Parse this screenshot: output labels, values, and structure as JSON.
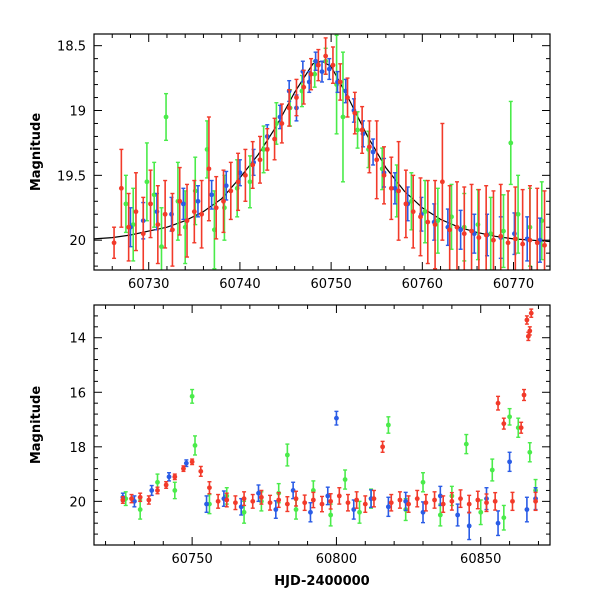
{
  "chart_data": [
    {
      "type": "scatter",
      "panel": "top",
      "title": "",
      "xlabel": "",
      "ylabel": "Magnitude",
      "xlim": [
        60724,
        60774
      ],
      "ylim": [
        20.23,
        18.41
      ],
      "y_inverted": true,
      "x_ticks": [
        60730,
        60740,
        60750,
        60760,
        60770
      ],
      "x_tick_labels": [
        "60730",
        "60740",
        "60750",
        "60760",
        "60770"
      ],
      "y_ticks": [
        18.5,
        19,
        19.5,
        20
      ],
      "y_tick_labels": [
        "18.5",
        "19",
        "19.5",
        "20"
      ],
      "grid": false,
      "legend": "none",
      "error_bars": true,
      "model_curve": {
        "description": "black line",
        "color": "#000000",
        "x": [
          60724,
          60726,
          60728,
          60730,
          60732,
          60734,
          60736,
          60738,
          60740,
          60742,
          60744,
          60746,
          60748,
          60749,
          60750,
          60752,
          60754,
          60756,
          60758,
          60760,
          60762,
          60764,
          60766,
          60768,
          60770,
          60772,
          60774
        ],
        "y": [
          19.99,
          19.98,
          19.96,
          19.93,
          19.9,
          19.85,
          19.78,
          19.68,
          19.52,
          19.34,
          19.12,
          18.86,
          18.64,
          18.62,
          18.66,
          18.92,
          19.2,
          19.44,
          19.62,
          19.75,
          19.84,
          19.9,
          19.94,
          19.97,
          19.99,
          20.0,
          20.01
        ]
      },
      "series": [
        {
          "color": "#4aeb4a",
          "x": [
            60727.5,
            60728.3,
            60729.8,
            60730.6,
            60731.4,
            60731.9,
            60733.2,
            60734.0,
            60735.1,
            60736.4,
            60737.2,
            60738.3,
            60739.7,
            60741.1,
            60742.6,
            60744.0,
            60745.5,
            60746.8,
            60748.2,
            60749.4,
            60750.6,
            60751.3,
            60752.9,
            60754.1,
            60755.6,
            60757.2,
            60758.8,
            60760.3,
            60761.7,
            60763.2,
            60764.6,
            60766.1,
            60767.5,
            60768.9,
            60769.7,
            60770.5,
            60771.8,
            60773.1
          ],
          "y": [
            19.72,
            19.88,
            19.55,
            19.65,
            20.05,
            19.05,
            19.7,
            19.9,
            19.62,
            19.3,
            19.92,
            19.75,
            19.6,
            19.55,
            19.3,
            19.1,
            18.98,
            18.85,
            18.72,
            18.62,
            18.8,
            19.05,
            19.15,
            19.3,
            19.45,
            19.62,
            19.7,
            19.78,
            19.85,
            19.82,
            19.9,
            19.88,
            19.95,
            19.93,
            19.25,
            19.8,
            19.9,
            19.85
          ],
          "err": [
            0.22,
            0.28,
            0.3,
            0.25,
            0.3,
            0.18,
            0.3,
            0.28,
            0.26,
            0.22,
            0.3,
            0.25,
            0.22,
            0.2,
            0.18,
            0.16,
            0.14,
            0.12,
            0.1,
            0.1,
            0.38,
            0.5,
            0.14,
            0.14,
            0.16,
            0.2,
            0.22,
            0.24,
            0.25,
            0.25,
            0.26,
            0.27,
            0.28,
            0.28,
            0.32,
            0.3,
            0.3,
            0.3
          ]
        },
        {
          "color": "#2a5ce6",
          "x": [
            60728.0,
            60729.4,
            60730.9,
            60732.5,
            60733.8,
            60735.4,
            60736.9,
            60738.5,
            60740.0,
            60741.5,
            60743.0,
            60744.4,
            60745.4,
            60746.2,
            60746.9,
            60747.6,
            60748.3,
            60749.0,
            60749.8,
            60750.7,
            60751.6,
            60752.5,
            60753.5,
            60754.6,
            60755.8,
            60757.0,
            60758.4,
            60759.9,
            60761.3,
            60762.8,
            60764.2,
            60765.7,
            60767.1,
            60768.6,
            60770.1,
            60771.5,
            60772.9
          ],
          "y": [
            19.9,
            19.85,
            19.78,
            19.8,
            19.72,
            19.7,
            19.65,
            19.58,
            19.48,
            19.4,
            19.2,
            19.05,
            18.85,
            18.98,
            18.7,
            18.78,
            18.62,
            18.7,
            18.68,
            18.78,
            18.85,
            19.0,
            19.18,
            19.32,
            19.48,
            19.6,
            19.72,
            19.8,
            19.86,
            19.9,
            19.92,
            19.95,
            19.96,
            19.98,
            19.95,
            19.99,
            20.0
          ],
          "err": [
            0.15,
            0.14,
            0.14,
            0.13,
            0.12,
            0.12,
            0.11,
            0.11,
            0.1,
            0.1,
            0.09,
            0.09,
            0.08,
            0.1,
            0.08,
            0.08,
            0.07,
            0.08,
            0.08,
            0.08,
            0.09,
            0.09,
            0.1,
            0.1,
            0.11,
            0.12,
            0.13,
            0.13,
            0.14,
            0.14,
            0.15,
            0.15,
            0.16,
            0.16,
            0.16,
            0.17,
            0.17
          ]
        },
        {
          "color": "#f23a2a",
          "x": [
            60726.2,
            60727.0,
            60727.8,
            60728.6,
            60729.4,
            60730.2,
            60731.0,
            60731.8,
            60732.6,
            60733.4,
            60734.2,
            60735.0,
            60735.8,
            60736.6,
            60737.4,
            60738.2,
            60739.0,
            60739.8,
            60740.6,
            60741.4,
            60742.2,
            60743.0,
            60743.8,
            60744.6,
            60745.4,
            60746.2,
            60747.0,
            60747.8,
            60748.6,
            60749.4,
            60750.2,
            60751.0,
            60751.8,
            60752.6,
            60753.4,
            60754.2,
            60755.0,
            60755.8,
            60756.6,
            60757.4,
            60758.2,
            60759.0,
            60759.8,
            60760.6,
            60761.4,
            60762.2,
            60763.0,
            60763.8,
            60764.6,
            60765.4,
            60766.2,
            60767.0,
            60767.8,
            60768.6,
            60769.4,
            60770.2,
            60771.0,
            60771.8,
            60772.6,
            60773.4
          ],
          "y": [
            20.02,
            19.6,
            19.9,
            19.78,
            19.95,
            19.72,
            19.88,
            19.8,
            19.92,
            19.7,
            19.85,
            19.78,
            19.8,
            19.45,
            19.75,
            19.7,
            19.62,
            19.55,
            19.5,
            19.42,
            19.38,
            19.3,
            19.22,
            19.1,
            18.98,
            18.9,
            18.82,
            18.72,
            18.65,
            18.58,
            18.65,
            18.78,
            18.9,
            19.02,
            19.15,
            19.28,
            19.38,
            19.5,
            19.6,
            19.62,
            19.72,
            19.78,
            19.82,
            19.86,
            19.88,
            19.55,
            19.92,
            19.9,
            19.95,
            19.93,
            19.98,
            19.96,
            20.0,
            19.97,
            20.02,
            19.99,
            20.03,
            20.0,
            20.02,
            20.04
          ],
          "err": [
            0.12,
            0.3,
            0.26,
            0.3,
            0.28,
            0.26,
            0.3,
            0.26,
            0.28,
            0.26,
            0.28,
            0.24,
            0.26,
            0.4,
            0.24,
            0.24,
            0.22,
            0.22,
            0.2,
            0.18,
            0.18,
            0.16,
            0.16,
            0.15,
            0.14,
            0.14,
            0.13,
            0.12,
            0.12,
            0.14,
            0.14,
            0.14,
            0.15,
            0.16,
            0.18,
            0.2,
            0.3,
            0.22,
            0.24,
            0.38,
            0.26,
            0.28,
            0.3,
            0.32,
            0.34,
            0.45,
            0.34,
            0.35,
            0.36,
            0.36,
            0.37,
            0.38,
            0.38,
            0.4,
            0.4,
            0.4,
            0.42,
            0.42,
            0.42,
            0.42
          ]
        }
      ]
    },
    {
      "type": "scatter",
      "panel": "bottom",
      "title": "",
      "xlabel": "HJD-2400000",
      "ylabel": "Magnitude",
      "xlim": [
        60716,
        60874
      ],
      "ylim": [
        21.6,
        12.8
      ],
      "y_inverted": true,
      "x_ticks": [
        60750,
        60800,
        60850
      ],
      "x_tick_labels": [
        "60750",
        "60800",
        "60850"
      ],
      "y_ticks": [
        14,
        16,
        18,
        20
      ],
      "y_tick_labels": [
        "14",
        "16",
        "18",
        "20"
      ],
      "grid": false,
      "legend": "none",
      "error_bars": true,
      "series": [
        {
          "color": "#4aeb4a",
          "x": [
            60727,
            60732,
            60738,
            60744,
            60750,
            60751,
            60756,
            60762,
            60768,
            60774,
            60780,
            60783,
            60786,
            60792,
            60798,
            60803,
            60808,
            60812,
            60818,
            60824,
            60830,
            60836,
            60840,
            60845,
            60850,
            60854,
            60858,
            60860,
            60863,
            60867,
            60869
          ],
          "y": [
            19.9,
            20.3,
            19.3,
            19.6,
            16.15,
            17.95,
            20.1,
            19.8,
            20.4,
            20.0,
            19.7,
            18.3,
            20.3,
            19.6,
            20.5,
            19.2,
            20.4,
            19.9,
            17.2,
            20.3,
            19.3,
            20.5,
            19.8,
            17.9,
            20.4,
            18.85,
            20.6,
            16.9,
            17.3,
            18.2,
            19.6
          ],
          "err": [
            0.25,
            0.35,
            0.3,
            0.3,
            0.25,
            0.35,
            0.35,
            0.3,
            0.4,
            0.35,
            0.35,
            0.4,
            0.35,
            0.35,
            0.4,
            0.35,
            0.4,
            0.35,
            0.3,
            0.4,
            0.35,
            0.4,
            0.35,
            0.35,
            0.45,
            0.4,
            0.45,
            0.3,
            0.35,
            0.35,
            0.4
          ]
        },
        {
          "color": "#2a5ce6",
          "x": [
            60726,
            60730,
            60736,
            60742,
            60748,
            60755,
            60761,
            60767,
            60773,
            60779,
            60785,
            60791,
            60797,
            60800,
            60806,
            60812,
            60818,
            60824,
            60830,
            60836,
            60842,
            60846,
            60852,
            60856,
            60860,
            60866,
            60869
          ],
          "y": [
            19.85,
            20.0,
            19.6,
            19.1,
            18.6,
            20.1,
            19.9,
            20.2,
            19.7,
            20.3,
            19.6,
            20.4,
            19.8,
            16.95,
            20.3,
            19.9,
            20.2,
            20.0,
            20.4,
            19.8,
            20.5,
            20.9,
            19.9,
            20.8,
            18.55,
            20.3,
            19.9
          ],
          "err": [
            0.15,
            0.2,
            0.18,
            0.15,
            0.12,
            0.3,
            0.28,
            0.3,
            0.3,
            0.32,
            0.3,
            0.35,
            0.32,
            0.25,
            0.35,
            0.32,
            0.35,
            0.33,
            0.38,
            0.35,
            0.4,
            0.5,
            0.4,
            0.45,
            0.35,
            0.45,
            0.4
          ]
        },
        {
          "color": "#f23a2a",
          "x": [
            60726,
            60729,
            60732,
            60735,
            60738,
            60741,
            60744,
            60747,
            60750,
            60753,
            60756,
            60759,
            60762,
            60765,
            60768,
            60771,
            60774,
            60777,
            60780,
            60783,
            60786,
            60789,
            60792,
            60795,
            60798,
            60801,
            60804,
            60807,
            60810,
            60813,
            60816,
            60819,
            60822,
            60825,
            60828,
            60831,
            60834,
            60837,
            60840,
            60843,
            60846,
            60849,
            60852,
            60855,
            60856,
            60858,
            60861,
            60864,
            60865,
            60866,
            60866.5,
            60867,
            60867.5,
            60869
          ],
          "y": [
            19.95,
            19.9,
            19.85,
            19.95,
            19.6,
            19.4,
            19.1,
            18.8,
            18.55,
            18.9,
            19.5,
            20.0,
            19.95,
            20.05,
            19.9,
            20.0,
            19.85,
            20.05,
            19.95,
            20.1,
            19.9,
            20.05,
            19.95,
            20.1,
            20.0,
            19.8,
            20.05,
            19.95,
            20.1,
            19.9,
            18.0,
            20.05,
            19.95,
            20.1,
            19.9,
            20.05,
            19.95,
            20.1,
            20.0,
            19.9,
            20.1,
            19.95,
            20.05,
            20.0,
            16.4,
            17.15,
            20.0,
            17.3,
            16.1,
            13.35,
            13.95,
            13.75,
            13.1,
            20.0
          ],
          "err": [
            0.12,
            0.15,
            0.15,
            0.15,
            0.12,
            0.12,
            0.1,
            0.1,
            0.1,
            0.18,
            0.22,
            0.25,
            0.25,
            0.25,
            0.25,
            0.25,
            0.25,
            0.27,
            0.27,
            0.27,
            0.27,
            0.28,
            0.28,
            0.28,
            0.28,
            0.3,
            0.3,
            0.3,
            0.3,
            0.3,
            0.2,
            0.3,
            0.3,
            0.3,
            0.3,
            0.3,
            0.3,
            0.3,
            0.32,
            0.32,
            0.32,
            0.32,
            0.32,
            0.32,
            0.25,
            0.2,
            0.33,
            0.2,
            0.2,
            0.15,
            0.15,
            0.15,
            0.15,
            0.33
          ]
        }
      ]
    }
  ]
}
